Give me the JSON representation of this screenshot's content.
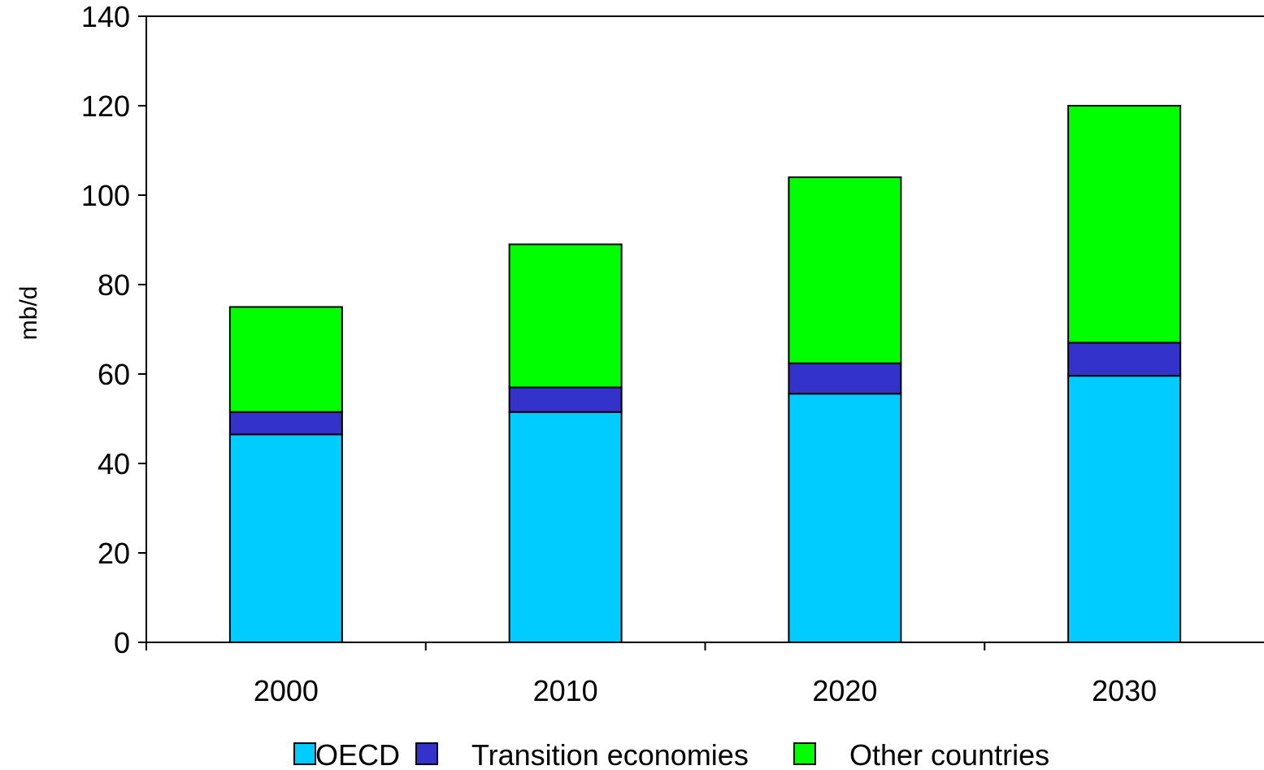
{
  "chart_data": {
    "type": "bar",
    "stacked": true,
    "categories": [
      "2000",
      "2010",
      "2020",
      "2030"
    ],
    "series": [
      {
        "name": "OECD",
        "values": [
          46.5,
          51.5,
          55.6,
          59.6
        ],
        "color": "#00CCFF"
      },
      {
        "name": "Transition economies",
        "values": [
          5.0,
          5.5,
          6.8,
          7.4
        ],
        "color": "#3333CC"
      },
      {
        "name": "Other countries",
        "values": [
          23.5,
          32.0,
          41.6,
          53.0
        ],
        "color": "#00FF00"
      }
    ],
    "title": "",
    "xlabel": "",
    "ylabel": "mb/d",
    "ylim": [
      0,
      140
    ],
    "yticks": [
      "0",
      "20",
      "40",
      "60",
      "80",
      "100",
      "120",
      "140"
    ],
    "grid": false,
    "legend_position": "bottom"
  }
}
